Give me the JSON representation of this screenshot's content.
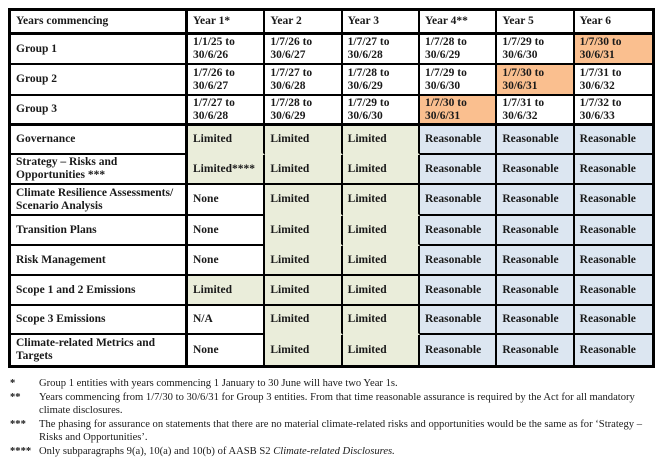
{
  "colors": {
    "limited_bg": "#EAEDDA",
    "reasonable_bg": "#DCE6F1",
    "highlight_bg": "#FABF8F",
    "border": "#000000",
    "text": "#1A1A1A"
  },
  "table": {
    "corner_header": "Years commencing",
    "year_headers": [
      "Year 1*",
      "Year 2",
      "Year 3",
      "Year 4**",
      "Year 5",
      "Year 6"
    ],
    "group_rows": [
      {
        "label": "Group 1",
        "periods": [
          "1/1/25 to 30/6/26",
          "1/7/26 to 30/6/27",
          "1/7/27 to 30/6/28",
          "1/7/28 to 30/6/29",
          "1/7/29 to 30/6/30",
          "1/7/30 to 30/6/31"
        ],
        "highlighted_year_index": 5
      },
      {
        "label": "Group 2",
        "periods": [
          "1/7/26 to 30/6/27",
          "1/7/27 to 30/6/28",
          "1/7/28 to 30/6/29",
          "1/7/29 to 30/6/30",
          "1/7/30 to 30/6/31",
          "1/7/31 to 30/6/32"
        ],
        "highlighted_year_index": 4
      },
      {
        "label": "Group 3",
        "periods": [
          "1/7/27 to 30/6/28",
          "1/7/28 to 30/6/29",
          "1/7/29 to 30/6/30",
          "1/7/30 to 30/6/31",
          "1/7/31 to 30/6/32",
          "1/7/32 to 30/6/33"
        ],
        "highlighted_year_index": 3
      }
    ],
    "assurance_rows": [
      {
        "label": "Governance",
        "values": [
          "Limited",
          "Limited",
          "Limited",
          "Reasonable",
          "Reasonable",
          "Reasonable"
        ]
      },
      {
        "label": "Strategy – Risks and Opportunities ***",
        "values": [
          "Limited****",
          "Limited",
          "Limited",
          "Reasonable",
          "Reasonable",
          "Reasonable"
        ]
      },
      {
        "label": "Climate Resilience Assessments/ Scenario Analysis",
        "values": [
          "None",
          "Limited",
          "Limited",
          "Reasonable",
          "Reasonable",
          "Reasonable"
        ]
      },
      {
        "label": "Transition Plans",
        "values": [
          "None",
          "Limited",
          "Limited",
          "Reasonable",
          "Reasonable",
          "Reasonable"
        ]
      },
      {
        "label": "Risk Management",
        "values": [
          "None",
          "Limited",
          "Limited",
          "Reasonable",
          "Reasonable",
          "Reasonable"
        ]
      },
      {
        "label": "Scope 1 and 2 Emissions",
        "values": [
          "Limited",
          "Limited",
          "Limited",
          "Reasonable",
          "Reasonable",
          "Reasonable"
        ]
      },
      {
        "label": "Scope 3 Emissions",
        "values": [
          "N/A",
          "Limited",
          "Limited",
          "Reasonable",
          "Reasonable",
          "Reasonable"
        ]
      },
      {
        "label": "Climate-related Metrics and Targets",
        "values": [
          "None",
          "Limited",
          "Limited",
          "Reasonable",
          "Reasonable",
          "Reasonable"
        ]
      }
    ]
  },
  "footnotes": [
    {
      "marker": "*",
      "text": "Group 1 entities with years commencing 1 January to 30 June will have two Year 1s."
    },
    {
      "marker": "**",
      "text": "Years commencing from 1/7/30 to 30/6/31 for Group 3 entities. From that time reasonable assurance is required by the Act for all mandatory climate disclosures."
    },
    {
      "marker": "***",
      "text": "The phasing for assurance on statements that there are no material climate-related risks and opportunities would be the same as for ‘Strategy – Risks and Opportunities’."
    },
    {
      "marker": "****",
      "text": "Only subparagraphs 9(a), 10(a) and 10(b) of AASB S2 ",
      "italic_text": "Climate-related Disclosures."
    }
  ]
}
